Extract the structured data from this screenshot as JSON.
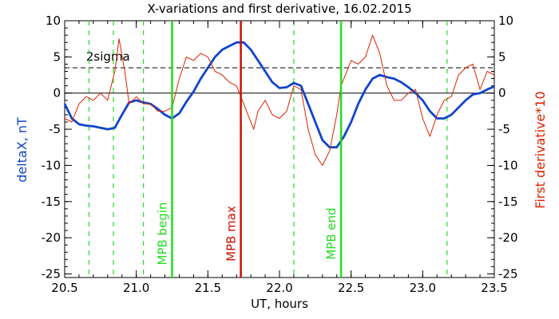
{
  "chart_data": {
    "type": "line",
    "title": "X-variations and first derivative, 16.02.2015",
    "xlabel": "UT, hours",
    "ylabel_left": "deltaX, nT",
    "ylabel_right": "First derivative*10",
    "xlim": [
      20.5,
      23.5
    ],
    "ylim": [
      -25.5,
      10
    ],
    "x_ticks": [
      20.5,
      21.0,
      21.5,
      22.0,
      22.5,
      23.0,
      23.5
    ],
    "x_tick_labels": [
      "20.5",
      "21.0",
      "21.5",
      "22.0",
      "22.5",
      "23.0",
      "23.5"
    ],
    "y_ticks": [
      10,
      5,
      0,
      -5,
      -10,
      -15,
      -20,
      -25
    ],
    "y_tick_labels": [
      "10",
      "5",
      "0",
      "-5",
      "-10",
      "-15",
      "-20",
      "-25"
    ],
    "grid": false,
    "two_sigma_label": "2sigma",
    "two_sigma_level": 3.5,
    "zero_line": 0,
    "dashed_verticals_x": [
      20.67,
      20.84,
      21.05,
      22.1,
      23.17
    ],
    "markers": [
      {
        "label": "MPB begin",
        "x": 21.25,
        "color": "#22dd22"
      },
      {
        "label": "MPB max",
        "x": 21.73,
        "color": "#cc1100"
      },
      {
        "label": "MPB end",
        "x": 22.43,
        "color": "#22dd22"
      }
    ],
    "series": [
      {
        "name": "deltaX, nT",
        "color": "#1144cc",
        "x": [
          20.5,
          20.55,
          20.6,
          20.65,
          20.7,
          20.75,
          20.8,
          20.85,
          20.9,
          20.95,
          21.0,
          21.05,
          21.1,
          21.15,
          21.2,
          21.25,
          21.3,
          21.35,
          21.4,
          21.45,
          21.5,
          21.55,
          21.6,
          21.65,
          21.7,
          21.75,
          21.8,
          21.85,
          21.9,
          21.95,
          22.0,
          22.05,
          22.1,
          22.15,
          22.2,
          22.25,
          22.3,
          22.35,
          22.4,
          22.45,
          22.5,
          22.55,
          22.6,
          22.65,
          22.7,
          22.75,
          22.8,
          22.85,
          22.9,
          22.95,
          23.0,
          23.05,
          23.1,
          23.15,
          23.2,
          23.25,
          23.3,
          23.35,
          23.4,
          23.45,
          23.5
        ],
        "y": [
          -1.5,
          -3.5,
          -4.3,
          -4.5,
          -4.6,
          -4.8,
          -5.0,
          -4.8,
          -3.0,
          -1.3,
          -1.0,
          -1.3,
          -1.5,
          -2.2,
          -3.0,
          -3.5,
          -2.8,
          -1.2,
          0.2,
          2.0,
          3.5,
          5.0,
          6.0,
          6.5,
          7.0,
          7.0,
          6.0,
          4.5,
          3.0,
          1.5,
          0.7,
          0.8,
          1.4,
          1.0,
          -1.5,
          -4.0,
          -6.5,
          -7.5,
          -7.5,
          -6.0,
          -4.0,
          -1.5,
          0.5,
          2.0,
          2.5,
          2.2,
          2.0,
          1.5,
          0.8,
          0.0,
          -1.0,
          -2.5,
          -3.5,
          -3.5,
          -3.0,
          -2.0,
          -1.0,
          -0.2,
          0.0,
          0.5,
          0.9
        ]
      },
      {
        "name": "First derivative*10",
        "color": "#dd2200",
        "x": [
          20.5,
          20.55,
          20.6,
          20.65,
          20.7,
          20.75,
          20.8,
          20.85,
          20.88,
          20.92,
          20.95,
          21.0,
          21.05,
          21.1,
          21.15,
          21.2,
          21.25,
          21.3,
          21.35,
          21.4,
          21.45,
          21.5,
          21.55,
          21.6,
          21.65,
          21.7,
          21.75,
          21.78,
          21.82,
          21.85,
          21.9,
          21.95,
          22.0,
          22.05,
          22.1,
          22.15,
          22.2,
          22.25,
          22.3,
          22.35,
          22.4,
          22.43,
          22.47,
          22.5,
          22.55,
          22.6,
          22.65,
          22.7,
          22.75,
          22.8,
          22.85,
          22.9,
          22.95,
          23.0,
          23.05,
          23.1,
          23.15,
          23.2,
          23.25,
          23.3,
          23.35,
          23.4,
          23.45,
          23.5
        ],
        "y": [
          -3.5,
          -4.0,
          -1.5,
          -0.5,
          -1.0,
          0.0,
          -1.0,
          3.0,
          7.5,
          3.0,
          -1.5,
          -0.5,
          -1.5,
          -1.5,
          -2.5,
          -2.5,
          -2.0,
          2.0,
          5.0,
          4.5,
          5.5,
          5.0,
          3.0,
          2.5,
          1.5,
          1.0,
          -1.5,
          -3.0,
          -5.0,
          -2.5,
          -1.0,
          -3.0,
          -3.5,
          -2.5,
          1.0,
          0.5,
          -5.0,
          -8.5,
          -10.0,
          -8.0,
          -3.0,
          1.0,
          3.0,
          4.5,
          4.0,
          5.0,
          8.0,
          5.5,
          1.0,
          -1.0,
          -1.0,
          0.0,
          0.5,
          -3.5,
          -6.0,
          -3.0,
          -1.0,
          -0.5,
          2.5,
          3.5,
          4.0,
          0.5,
          3.0,
          2.5
        ]
      }
    ]
  }
}
